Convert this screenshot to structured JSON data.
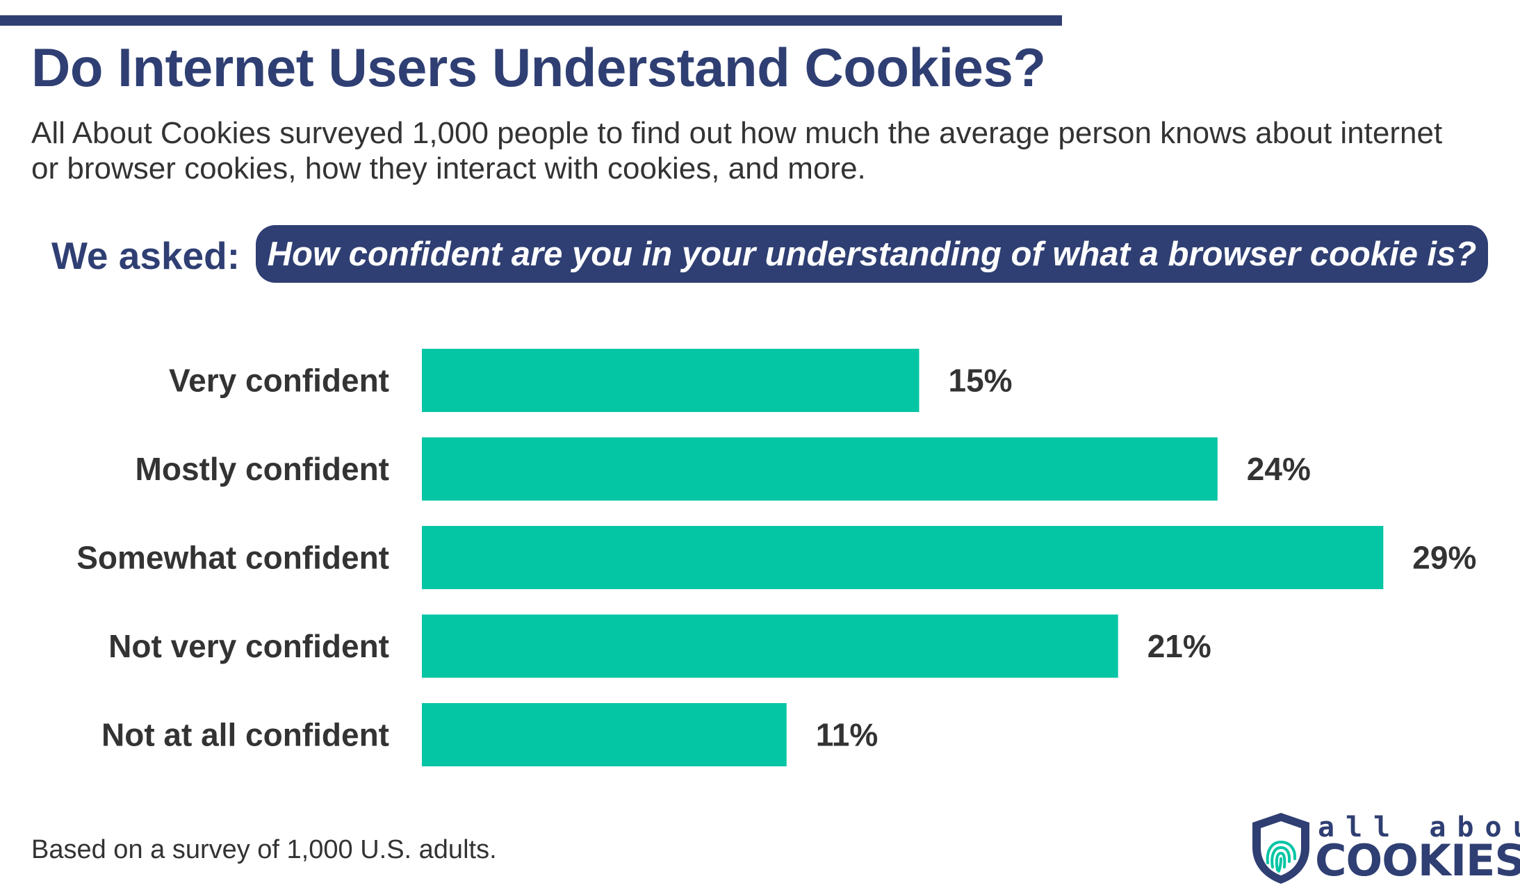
{
  "header": {
    "title": "Do Internet Users Understand Cookies?",
    "subtitle": "All About Cookies surveyed 1,000 people to find out how much the average person knows about internet or browser cookies, how they interact with cookies, and more."
  },
  "question": {
    "label": "We asked:",
    "text": "How confident are you in your understanding of what a browser cookie is?"
  },
  "colors": {
    "navy": "#2f3f73",
    "bar": "#04c5a4",
    "text": "#333333"
  },
  "chart_data": {
    "type": "bar",
    "orientation": "horizontal",
    "categories": [
      "Very confident",
      "Mostly confident",
      "Somewhat confident",
      "Not very confident",
      "Not at all confident"
    ],
    "values": [
      15,
      24,
      29,
      21,
      11
    ],
    "value_labels": [
      "15%",
      "24%",
      "29%",
      "21%",
      "11%"
    ],
    "unit": "%",
    "grid": false,
    "legend": "none"
  },
  "footer": {
    "note": "Based on a survey of 1,000 U.S. adults.",
    "logo_top": "all about",
    "logo_bottom": "COOKIES"
  }
}
